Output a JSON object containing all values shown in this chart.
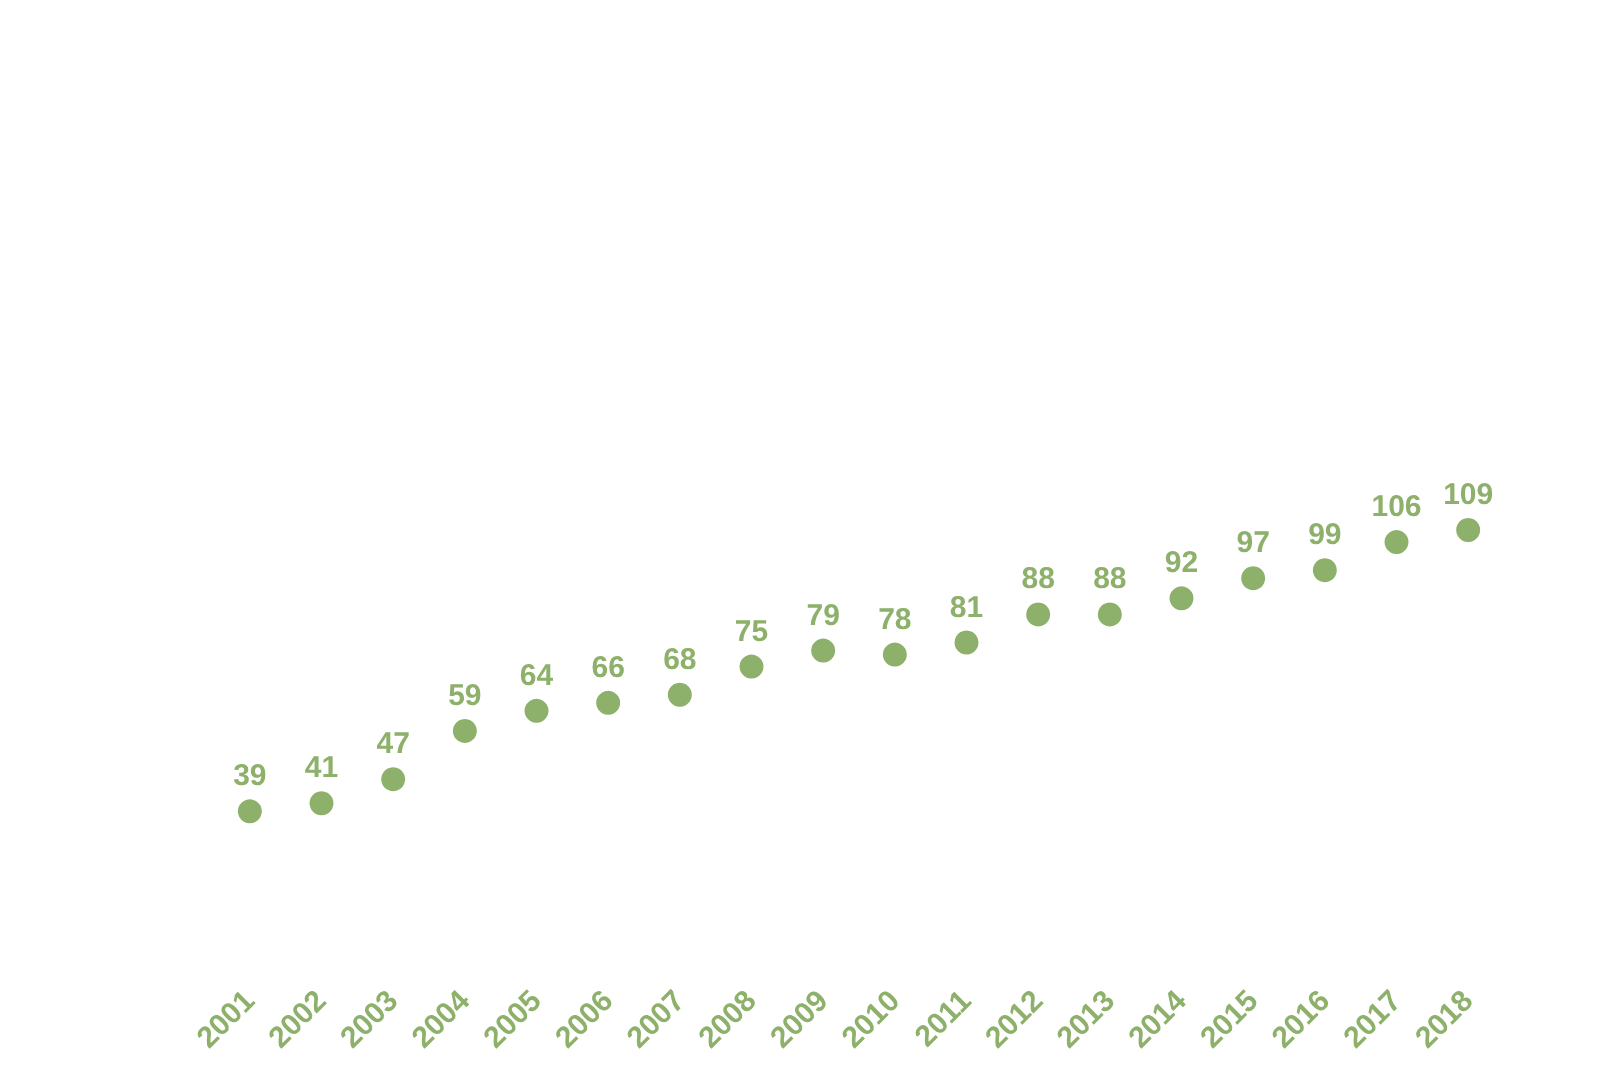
{
  "chart_data": {
    "type": "scatter",
    "categories": [
      "2001",
      "2002",
      "2003",
      "2004",
      "2005",
      "2006",
      "2007",
      "2008",
      "2009",
      "2010",
      "2011",
      "2012",
      "2013",
      "2014",
      "2015",
      "2016",
      "2017",
      "2018"
    ],
    "series": [
      {
        "color": "#8db06a",
        "values": [
          39,
          41,
          47,
          59,
          64,
          66,
          68,
          75,
          79,
          78,
          81,
          88,
          88,
          92,
          97,
          99,
          106,
          109
        ]
      }
    ],
    "data_labels": true,
    "marker": "circle",
    "grid": false,
    "tick_labels": "x"
  }
}
